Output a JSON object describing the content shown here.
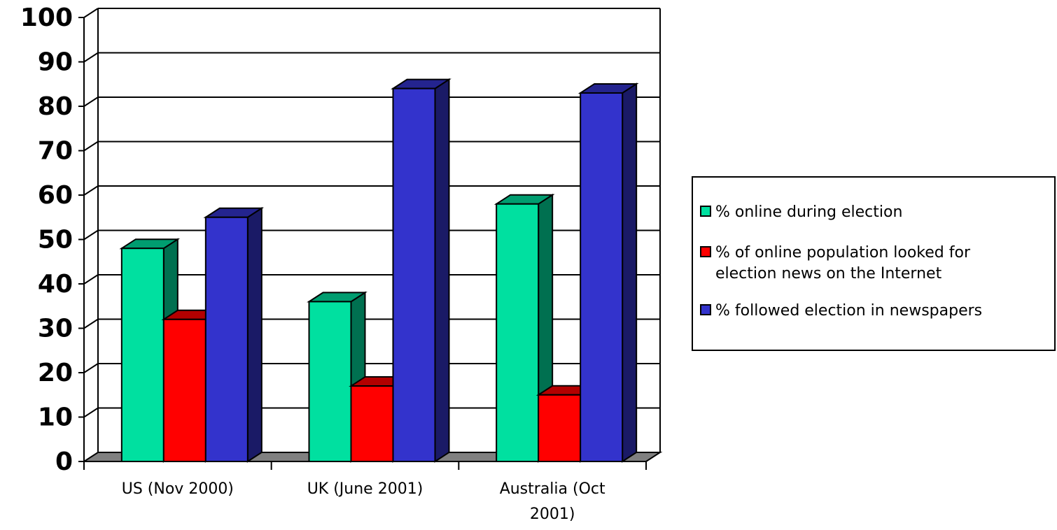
{
  "chart_data": {
    "type": "bar",
    "categories": [
      "US (Nov 2000)",
      "UK (June 2001)",
      "Australia (Oct 2001)"
    ],
    "category_lines": [
      [
        "US (Nov 2000)"
      ],
      [
        "UK (June 2001)"
      ],
      [
        "Australia (Oct",
        "2001)"
      ]
    ],
    "series": [
      {
        "name": "% online during election",
        "values": [
          48,
          36,
          58
        ],
        "color": "#00E0A0"
      },
      {
        "name": "% of online population looked for election news on the Internet",
        "values": [
          32,
          17,
          15
        ],
        "color": "#FF0000"
      },
      {
        "name": "% followed election in newspapers",
        "values": [
          55,
          84,
          83
        ],
        "color": "#3333CC"
      }
    ],
    "legend_lines": [
      [
        "% online during election"
      ],
      [
        "% of online population looked for",
        "election news on the Internet"
      ],
      [
        "% followed election in newspapers"
      ]
    ],
    "ylim": [
      0,
      100
    ],
    "yticks": [
      0,
      10,
      20,
      30,
      40,
      50,
      60,
      70,
      80,
      90,
      100
    ],
    "grid": true,
    "three_d": true,
    "legend_position": "right"
  }
}
